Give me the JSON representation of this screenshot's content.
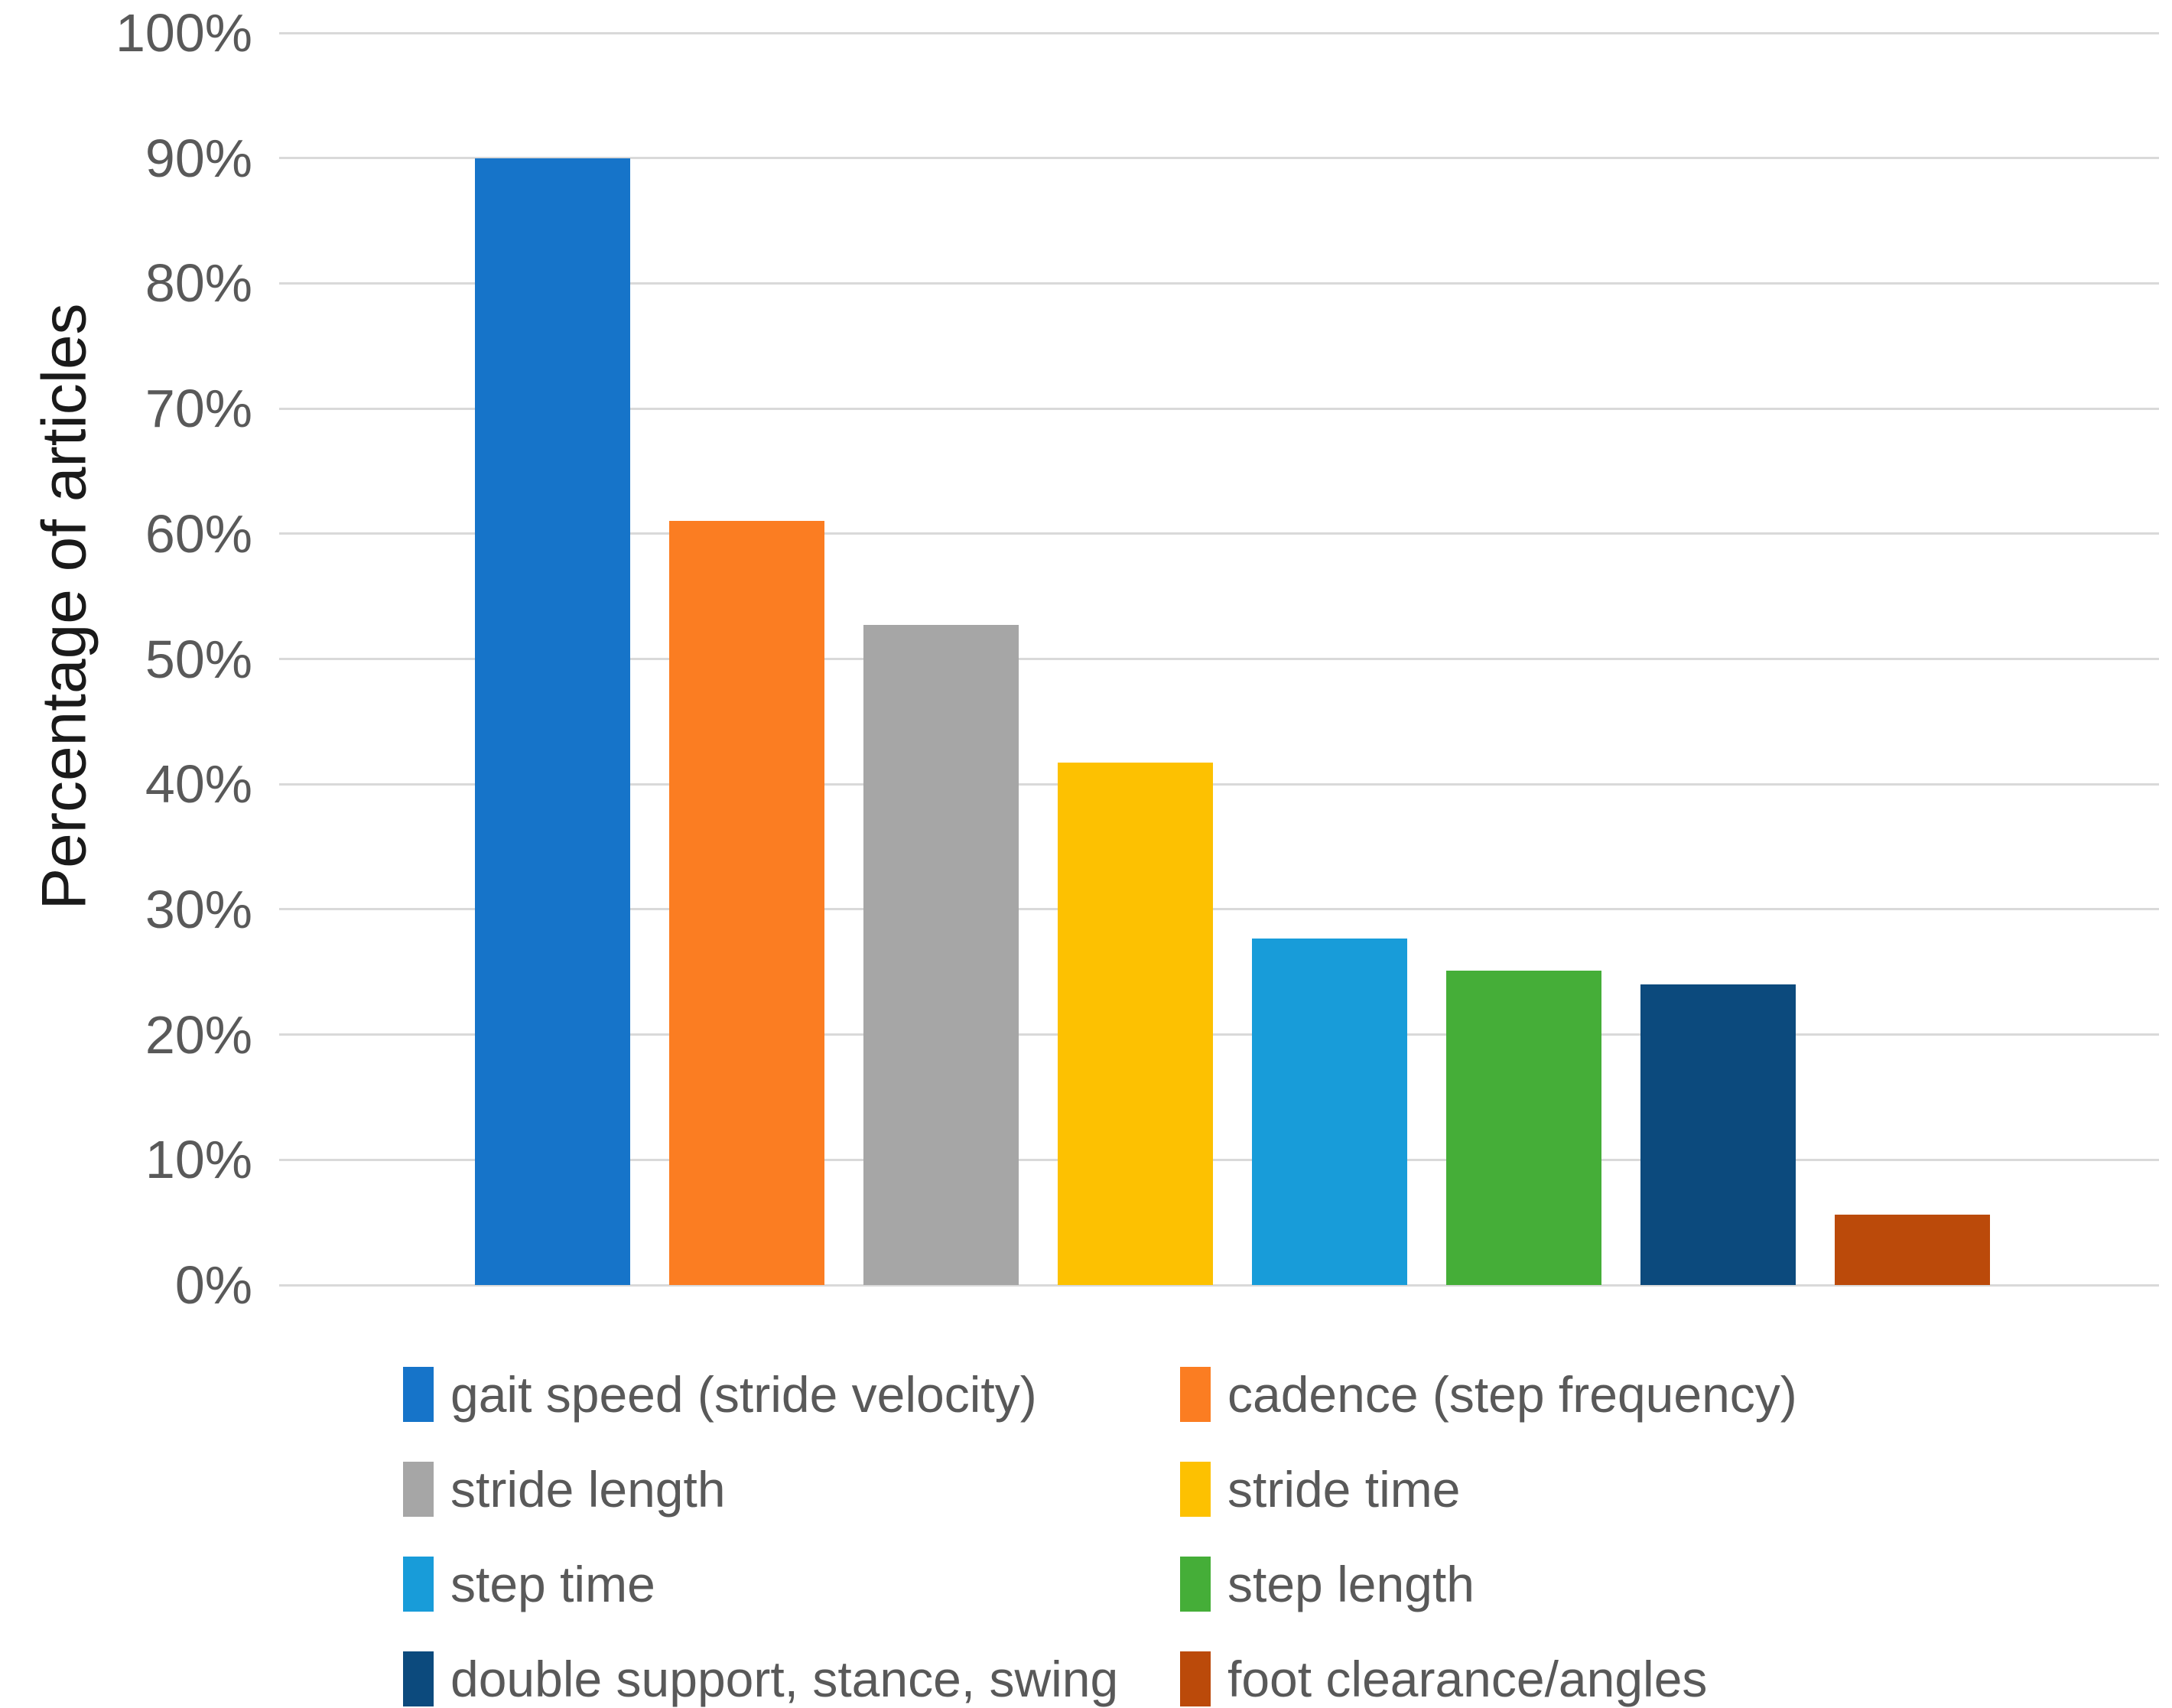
{
  "chart_data": {
    "type": "bar",
    "title": "",
    "xlabel": "",
    "ylabel": "Percentage of articles",
    "ylim": [
      0,
      100
    ],
    "ytick_step": 10,
    "ytick_labels": [
      "0%",
      "10%",
      "20%",
      "30%",
      "40%",
      "50%",
      "60%",
      "70%",
      "80%",
      "90%",
      "100%"
    ],
    "grid": true,
    "legend_position": "bottom",
    "legend_columns": 2,
    "categories": [
      "gait speed (stride velocity)",
      "cadence (step frequency)",
      "stride length",
      "stride time",
      "step time",
      "step length",
      "double support, stance, swing",
      "foot clearance/angles"
    ],
    "values": [
      90,
      61,
      52.7,
      41.7,
      27.7,
      25.1,
      24,
      5.6
    ],
    "colors": [
      "#1674C9",
      "#FB7D22",
      "#A6A6A6",
      "#FDC101",
      "#189CD9",
      "#45AE38",
      "#0C4A7D",
      "#BB4A0A"
    ]
  },
  "style": {
    "gridline_color": "#D9D9D9",
    "tick_label_color": "#595959",
    "axis_title_color": "#1A1A1A",
    "background_color": "#FFFFFF"
  }
}
